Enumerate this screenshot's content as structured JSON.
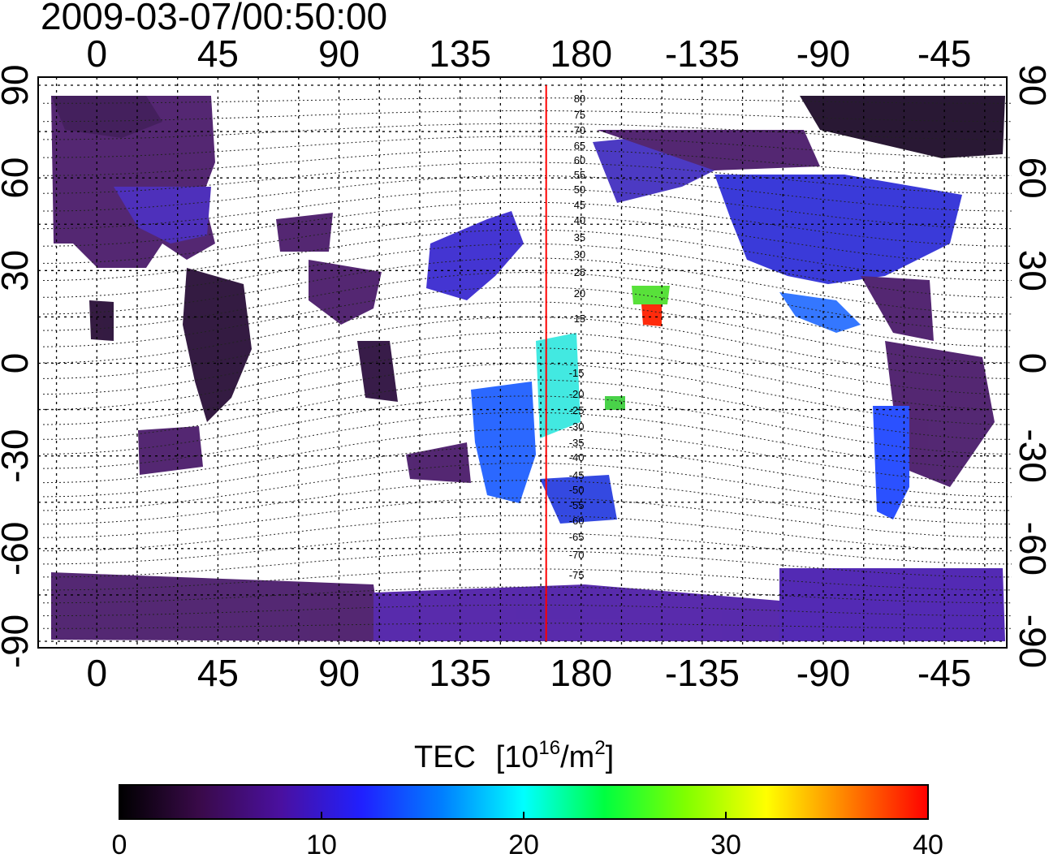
{
  "title": "2009-03-07/00:50:00",
  "top_lon_labels": [
    "0",
    "45",
    "90",
    "135",
    "180",
    "-135",
    "-90",
    "-45"
  ],
  "bottom_lon_labels": [
    "0",
    "45",
    "90",
    "135",
    "180",
    "-135",
    "-90",
    "-45"
  ],
  "left_lat_labels": [
    "90",
    "60",
    "30",
    "0",
    "-30",
    "-60",
    "-90"
  ],
  "right_lat_labels": [
    "90",
    "60",
    "30",
    "0",
    "-30",
    "-60",
    "-90"
  ],
  "contour_labels_north": [
    "80",
    "75",
    "70",
    "65",
    "60",
    "55",
    "50",
    "45",
    "40",
    "35",
    "30",
    "25",
    "20",
    "15"
  ],
  "contour_labels_south": [
    "-15",
    "-20",
    "-25",
    "-30",
    "-35",
    "-40",
    "-45",
    "-50",
    "-55",
    "-60",
    "-65",
    "-70",
    "-75"
  ],
  "colorbar": {
    "label": "TEC",
    "unit_bracket_open": "[10",
    "unit_exp": "16",
    "unit_mid": "/m",
    "unit_exp2": "2",
    "unit_bracket_close": "]",
    "min": 0,
    "max": 40,
    "tick_labels": [
      "0",
      "10",
      "20",
      "30",
      "40"
    ],
    "colors": [
      "#000000",
      "#3a0a4a",
      "#4a10a0",
      "#2020ff",
      "#0080ff",
      "#00ffff",
      "#00ff40",
      "#80ff00",
      "#ffff00",
      "#ff8000",
      "#ff0000"
    ]
  },
  "meridian_marker_lon": 167,
  "colors": {
    "low": "#4a1a6a",
    "mid": "#3a2ad0",
    "midhigh": "#1e6cff",
    "cyan": "#40ffd8",
    "green": "#40e040",
    "red": "#ff2000",
    "marker": "#ff0000"
  }
}
